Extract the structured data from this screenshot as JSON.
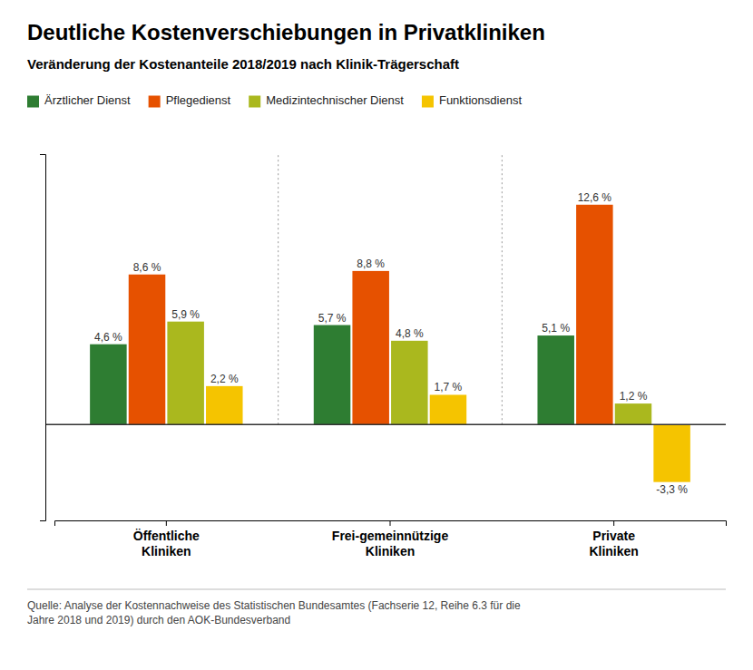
{
  "chart_data": {
    "type": "bar",
    "title": "Deutliche Kostenverschiebungen in Privatkliniken",
    "subtitle": "Veränderung der Kostenanteile 2018/2019 nach Klinik-Trägerschaft",
    "categories": [
      "Öffentliche\nKliniken",
      "Frei-gemeinnützige\nKliniken",
      "Private\nKliniken"
    ],
    "series": [
      {
        "name": "Ärztlicher Dienst",
        "color": "#2e7d32",
        "values": [
          4.6,
          5.7,
          5.1
        ],
        "value_labels": [
          "4,6 %",
          "5,7 %",
          "5,1 %"
        ]
      },
      {
        "name": "Pflegedienst",
        "color": "#e65100",
        "values": [
          8.6,
          8.8,
          12.6
        ],
        "value_labels": [
          "8,6 %",
          "8,8 %",
          "12,6 %"
        ]
      },
      {
        "name": "Medizintechnischer Dienst",
        "color": "#aab81e",
        "values": [
          5.9,
          4.8,
          1.2
        ],
        "value_labels": [
          "5,9 %",
          "4,8 %",
          "1,2 %"
        ]
      },
      {
        "name": "Funktionsdienst",
        "color": "#f5c400",
        "values": [
          2.2,
          1.7,
          -3.3
        ],
        "value_labels": [
          "2,2 %",
          "1,7 %",
          "-3,3 %"
        ]
      }
    ],
    "ylim": [
      -5.5,
      15.5
    ],
    "data_labels": true,
    "tick_labels": "x",
    "legend": "upper left",
    "annotations": [
      "Quelle: Analyse der Kostennachweise des Statistischen Bundesamtes (Fachserie 12, Reihe 6.3 für die\nJahre 2018 und 2019) durch den AOK-Bundesverband"
    ]
  }
}
